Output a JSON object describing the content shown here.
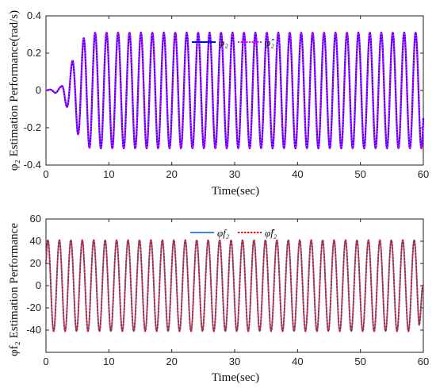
{
  "chart_data": [
    {
      "type": "line",
      "ylabel": "φ₂ Estimation Performance(rad/s)",
      "xlabel": "Time(sec)",
      "xlim": [
        0,
        60
      ],
      "ylim": [
        -0.4,
        0.4
      ],
      "xticks": [
        0,
        10,
        20,
        30,
        40,
        50,
        60
      ],
      "yticks": [
        -0.4,
        -0.2,
        0,
        0.2,
        0.4
      ],
      "ytick_labels": [
        "-0.4",
        "-0.2",
        "0",
        "0.2",
        "0.4"
      ],
      "grid": false,
      "legend_position": "top-center",
      "signal": {
        "shape": "sinusoid settling to steady oscillation",
        "steady_amplitude": 0.31,
        "period_sec": 1.82,
        "settle_time_sec": 7,
        "startup_peaks": [
          {
            "x": 2.4,
            "y": 0.02
          },
          {
            "x": 3.2,
            "y": -0.08
          },
          {
            "x": 4.1,
            "y": 0.15
          },
          {
            "x": 5.0,
            "y": -0.23
          },
          {
            "x": 6.0,
            "y": 0.28
          },
          {
            "x": 7.0,
            "y": -0.31
          }
        ]
      },
      "series": [
        {
          "name": "φ₂",
          "color": "#0000ff",
          "style": "solid"
        },
        {
          "name": "φ̂₂",
          "color": "#ff00ff",
          "style": "dotted"
        }
      ]
    },
    {
      "type": "line",
      "ylabel": "φf₂ Estimation Performance",
      "xlabel": "Time(sec)",
      "xlim": [
        0,
        60
      ],
      "ylim": [
        -60,
        60
      ],
      "xticks": [
        0,
        10,
        20,
        30,
        40,
        50,
        60
      ],
      "yticks": [
        -60,
        -40,
        -20,
        0,
        20,
        40,
        60
      ],
      "ytick_labels": [
        "",
        "-40",
        "-20",
        "0",
        "20",
        "40",
        "60"
      ],
      "grid": false,
      "legend_position": "top-center",
      "signal": {
        "shape": "steady sinusoid",
        "amplitude": 41,
        "period_sec": 1.82,
        "start_value": 20,
        "end_value": 0
      },
      "series": [
        {
          "name": "φf₂",
          "color": "#1f77d0",
          "style": "solid"
        },
        {
          "name": "φ̂f₂",
          "color": "#e01818",
          "style": "dotted"
        }
      ]
    }
  ]
}
